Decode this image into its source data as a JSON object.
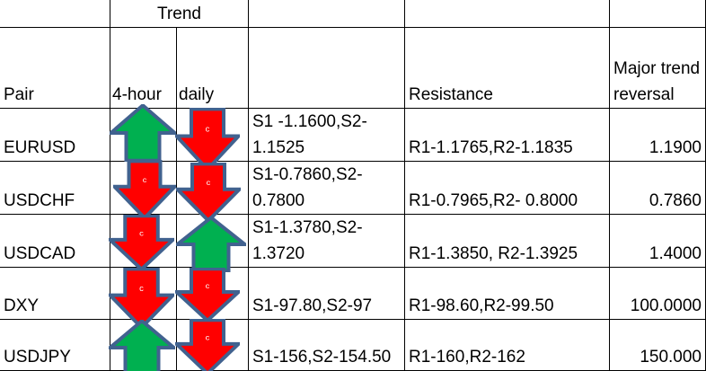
{
  "header": {
    "trend": "Trend",
    "pair": "Pair",
    "four_hour": "4-hour",
    "daily": "daily",
    "support": "",
    "resistance": "Resistance",
    "major_reversal": "Major trend reversal"
  },
  "rows": [
    {
      "pair": "EURUSD",
      "four_hour": "up",
      "daily": "down",
      "support": "S1 -1.1600,S2-1.1525",
      "resistance": "R1-1.1765,R2-1.1835",
      "reversal": "1.1900"
    },
    {
      "pair": "USDCHF",
      "four_hour": "down",
      "daily": "down",
      "support": "S1-0.7860,S2-0.7800",
      "resistance": "R1-0.7965,R2- 0.8000",
      "reversal": "0.7860"
    },
    {
      "pair": "USDCAD",
      "four_hour": "down",
      "daily": "up",
      "support": "S1-1.3780,S2-1.3720",
      "resistance": "R1-1.3850, R2-1.3925",
      "reversal": "1.4000"
    },
    {
      "pair": "DXY",
      "four_hour": "down",
      "daily": "down",
      "support": "S1-97.80,S2-97",
      "resistance": "R1-98.60,R2-99.50",
      "reversal": "100.0000"
    },
    {
      "pair": "USDJPY",
      "four_hour": "up",
      "daily": "down",
      "support": "S1-156,S2-154.50",
      "resistance": "R1-160,R2-162",
      "reversal": "150.000"
    }
  ],
  "arrow_label": "c",
  "colors": {
    "up": "#00b050",
    "down": "#ff0000",
    "outline": "#41628f"
  }
}
